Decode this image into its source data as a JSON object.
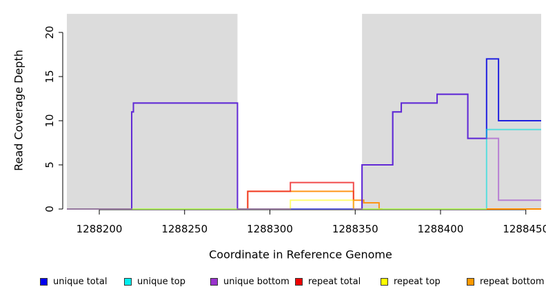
{
  "chart_data": {
    "type": "line",
    "subtype": "step-coverage",
    "title": "",
    "xlabel": "Coordinate in Reference Genome",
    "ylabel": "Read Coverage Depth",
    "xlim": [
      1288181,
      1288459
    ],
    "ylim": [
      0,
      22.5
    ],
    "x_ticks": [
      1288200,
      1288250,
      1288300,
      1288350,
      1288400,
      1288450
    ],
    "y_ticks": [
      0,
      5,
      10,
      15,
      20
    ],
    "grid": false,
    "shaded_regions": [
      {
        "name": "unique-region-left",
        "x0": 1288181,
        "x1": 1288281,
        "ymax": 22.1,
        "color": "#DCDCDC"
      },
      {
        "name": "unique-region-right",
        "x0": 1288354,
        "x1": 1288459,
        "ymax": 22.1,
        "color": "#DCDCDC"
      }
    ],
    "series": [
      {
        "name": "repeat bottom",
        "color": "#FF8C00",
        "opacity": 0.9,
        "width": 2,
        "points": [
          [
            1288286,
            0
          ],
          [
            1288287,
            2
          ],
          [
            1288349,
            1
          ],
          [
            1288355,
            0.7
          ],
          [
            1288364,
            0
          ]
        ],
        "end": 1288366
      },
      {
        "name": "repeat total",
        "color": "#EE2C2C",
        "opacity": 0.85,
        "width": 2,
        "points": [
          [
            1288286,
            0
          ],
          [
            1288287,
            2
          ],
          [
            1288312,
            3
          ],
          [
            1288349,
            0
          ]
        ],
        "end": 1288351
      },
      {
        "name": "unique total",
        "color": "#1F1FE0",
        "opacity": 1,
        "width": 2,
        "points": [
          [
            1288181,
            0
          ],
          [
            1288219,
            11
          ],
          [
            1288220,
            12
          ],
          [
            1288281,
            0
          ],
          [
            1288354,
            5
          ],
          [
            1288372,
            11
          ],
          [
            1288377,
            12
          ],
          [
            1288398,
            13
          ],
          [
            1288416,
            8
          ],
          [
            1288427,
            17
          ],
          [
            1288434,
            10
          ]
        ],
        "end": 1288459
      },
      {
        "name": "unique top",
        "color": "#00E0E0",
        "opacity": 0.6,
        "width": 2,
        "points": [
          [
            1288181,
            0
          ],
          [
            1288427,
            9
          ]
        ],
        "end": 1288459
      },
      {
        "name": "repeat top",
        "color": "#FFFF00",
        "opacity": 0.55,
        "width": 2,
        "points": [
          [
            1288181,
            0
          ],
          [
            1288312,
            1
          ],
          [
            1288349,
            0
          ]
        ],
        "end": 1288459
      },
      {
        "name": "unique bottom",
        "color": "#9932CC",
        "opacity": 0.55,
        "width": 2,
        "points": [
          [
            1288181,
            0
          ],
          [
            1288219,
            11
          ],
          [
            1288220,
            12
          ],
          [
            1288281,
            0
          ],
          [
            1288354,
            5
          ],
          [
            1288372,
            11
          ],
          [
            1288377,
            12
          ],
          [
            1288398,
            13
          ],
          [
            1288416,
            8
          ],
          [
            1288434,
            1
          ]
        ],
        "end": 1288459
      },
      {
        "name": "repeat bottom tail",
        "color": "#FF8C00",
        "opacity": 1,
        "width": 2,
        "points": [
          [
            1288427,
            0
          ]
        ],
        "end": 1288459
      }
    ]
  },
  "legend": {
    "items": [
      {
        "label": "unique total",
        "color": "#0000EE"
      },
      {
        "label": "unique top",
        "color": "#00EEEE"
      },
      {
        "label": "unique bottom",
        "color": "#9932CC"
      },
      {
        "label": "repeat total",
        "color": "#EE0000"
      },
      {
        "label": "repeat top",
        "color": "#FFFF00"
      },
      {
        "label": "repeat bottom",
        "color": "#FF9900"
      }
    ]
  }
}
